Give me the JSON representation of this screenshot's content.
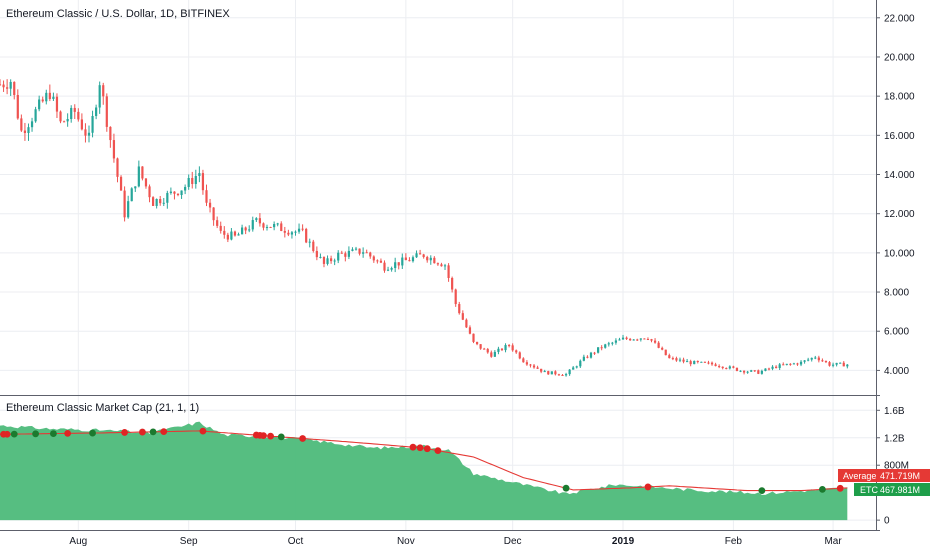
{
  "chart_data": [
    {
      "type": "candlestick",
      "title": "Ethereum Classic / U.S. Dollar, 1D, BITFINEX",
      "ylim": [
        3,
        22.5
      ],
      "y_ticks": [
        "22.000",
        "20.000",
        "18.000",
        "16.000",
        "14.000",
        "12.000",
        "10.000",
        "8.000",
        "6.000",
        "4.000"
      ],
      "x_ticks": [
        "Aug",
        "Sep",
        "Oct",
        "Nov",
        "Dec",
        "2019",
        "Feb",
        "Mar"
      ],
      "x_range": [
        "2018-07-10",
        "2019-03-08"
      ],
      "grid": true,
      "up_color": "#26a69a",
      "down_color": "#ef5350",
      "anchors": [
        [
          "2018-07-10",
          18.6
        ],
        [
          "2018-07-13",
          18.8
        ],
        [
          "2018-07-16",
          16.2
        ],
        [
          "2018-07-20",
          17.2
        ],
        [
          "2018-07-24",
          18.2
        ],
        [
          "2018-07-27",
          16.6
        ],
        [
          "2018-07-31",
          17.2
        ],
        [
          "2018-08-04",
          15.8
        ],
        [
          "2018-08-07",
          18.8
        ],
        [
          "2018-08-10",
          15.8
        ],
        [
          "2018-08-14",
          12.0
        ],
        [
          "2018-08-18",
          14.2
        ],
        [
          "2018-08-22",
          12.6
        ],
        [
          "2018-08-27",
          13.0
        ],
        [
          "2018-08-31",
          13.4
        ],
        [
          "2018-09-04",
          14.1
        ],
        [
          "2018-09-06",
          12.4
        ],
        [
          "2018-09-10",
          11.0
        ],
        [
          "2018-09-14",
          10.8
        ],
        [
          "2018-09-20",
          11.6
        ],
        [
          "2018-09-26",
          11.3
        ],
        [
          "2018-10-03",
          11.0
        ],
        [
          "2018-10-09",
          9.4
        ],
        [
          "2018-10-13",
          9.9
        ],
        [
          "2018-10-20",
          10.1
        ],
        [
          "2018-10-26",
          9.3
        ],
        [
          "2018-11-01",
          9.6
        ],
        [
          "2018-11-06",
          9.9
        ],
        [
          "2018-11-12",
          9.4
        ],
        [
          "2018-11-15",
          7.4
        ],
        [
          "2018-11-20",
          5.4
        ],
        [
          "2018-11-25",
          4.8
        ],
        [
          "2018-11-30",
          5.3
        ],
        [
          "2018-12-04",
          4.5
        ],
        [
          "2018-12-10",
          3.9
        ],
        [
          "2018-12-16",
          3.8
        ],
        [
          "2018-12-21",
          4.6
        ],
        [
          "2018-12-26",
          5.2
        ],
        [
          "2019-01-01",
          5.6
        ],
        [
          "2019-01-08",
          5.7
        ],
        [
          "2019-01-14",
          4.6
        ],
        [
          "2019-01-20",
          4.4
        ],
        [
          "2019-01-27",
          4.3
        ],
        [
          "2019-02-03",
          4.0
        ],
        [
          "2019-02-08",
          3.9
        ],
        [
          "2019-02-13",
          4.2
        ],
        [
          "2019-02-20",
          4.4
        ],
        [
          "2019-02-24",
          4.7
        ],
        [
          "2019-02-28",
          4.3
        ],
        [
          "2019-03-05",
          4.3
        ]
      ]
    },
    {
      "type": "area",
      "title": "Ethereum Classic Market Cap (21, 1, 1)",
      "ylim": [
        -0.1,
        1.75
      ],
      "y_ticks": [
        "1.6B",
        "1.2B",
        "800M",
        "0"
      ],
      "series": [
        {
          "name": "ETC",
          "color": "#4dbb7a",
          "last_label": "467.981M",
          "values": [
            [
              "2018-07-10",
              1.38
            ],
            [
              "2018-07-24",
              1.33
            ],
            [
              "2018-08-07",
              1.31
            ],
            [
              "2018-08-21",
              1.27
            ],
            [
              "2018-09-04",
              1.42
            ],
            [
              "2018-09-11",
              1.24
            ],
            [
              "2018-09-25",
              1.22
            ],
            [
              "2018-10-09",
              1.14
            ],
            [
              "2018-10-23",
              1.05
            ],
            [
              "2018-11-06",
              1.08
            ],
            [
              "2018-11-13",
              1.02
            ],
            [
              "2018-11-20",
              0.68
            ],
            [
              "2018-12-02",
              0.54
            ],
            [
              "2018-12-16",
              0.38
            ],
            [
              "2018-12-30",
              0.52
            ],
            [
              "2019-01-08",
              0.49
            ],
            [
              "2019-01-20",
              0.44
            ],
            [
              "2019-02-10",
              0.39
            ],
            [
              "2019-02-24",
              0.44
            ],
            [
              "2019-03-05",
              0.47
            ]
          ]
        },
        {
          "name": "Average",
          "color": "#e53935",
          "last_label": "471.719M",
          "values": [
            [
              "2018-07-10",
              1.25
            ],
            [
              "2018-08-07",
              1.27
            ],
            [
              "2018-09-04",
              1.3
            ],
            [
              "2018-09-25",
              1.22
            ],
            [
              "2018-10-16",
              1.14
            ],
            [
              "2018-11-06",
              1.05
            ],
            [
              "2018-11-20",
              0.92
            ],
            [
              "2018-12-04",
              0.62
            ],
            [
              "2018-12-18",
              0.44
            ],
            [
              "2019-01-03",
              0.47
            ],
            [
              "2019-01-14",
              0.5
            ],
            [
              "2019-02-05",
              0.43
            ],
            [
              "2019-02-20",
              0.43
            ],
            [
              "2019-03-05",
              0.47
            ]
          ]
        }
      ],
      "cross_markers": [
        {
          "date": "2018-07-11",
          "color": "red"
        },
        {
          "date": "2018-07-12",
          "color": "red"
        },
        {
          "date": "2018-07-14",
          "color": "green"
        },
        {
          "date": "2018-07-20",
          "color": "green"
        },
        {
          "date": "2018-07-25",
          "color": "green"
        },
        {
          "date": "2018-07-29",
          "color": "red"
        },
        {
          "date": "2018-08-05",
          "color": "green"
        },
        {
          "date": "2018-08-14",
          "color": "red"
        },
        {
          "date": "2018-08-19",
          "color": "red"
        },
        {
          "date": "2018-08-22",
          "color": "green"
        },
        {
          "date": "2018-08-25",
          "color": "red"
        },
        {
          "date": "2018-09-05",
          "color": "red"
        },
        {
          "date": "2018-09-20",
          "color": "red"
        },
        {
          "date": "2018-09-21",
          "color": "red"
        },
        {
          "date": "2018-09-22",
          "color": "red"
        },
        {
          "date": "2018-09-24",
          "color": "red"
        },
        {
          "date": "2018-09-27",
          "color": "green"
        },
        {
          "date": "2018-10-03",
          "color": "red"
        },
        {
          "date": "2018-11-03",
          "color": "red"
        },
        {
          "date": "2018-11-05",
          "color": "red"
        },
        {
          "date": "2018-11-07",
          "color": "red"
        },
        {
          "date": "2018-11-10",
          "color": "red"
        },
        {
          "date": "2018-12-16",
          "color": "green"
        },
        {
          "date": "2019-01-08",
          "color": "red"
        },
        {
          "date": "2019-02-09",
          "color": "green"
        },
        {
          "date": "2019-02-26",
          "color": "green"
        },
        {
          "date": "2019-03-03",
          "color": "red"
        }
      ]
    }
  ]
}
